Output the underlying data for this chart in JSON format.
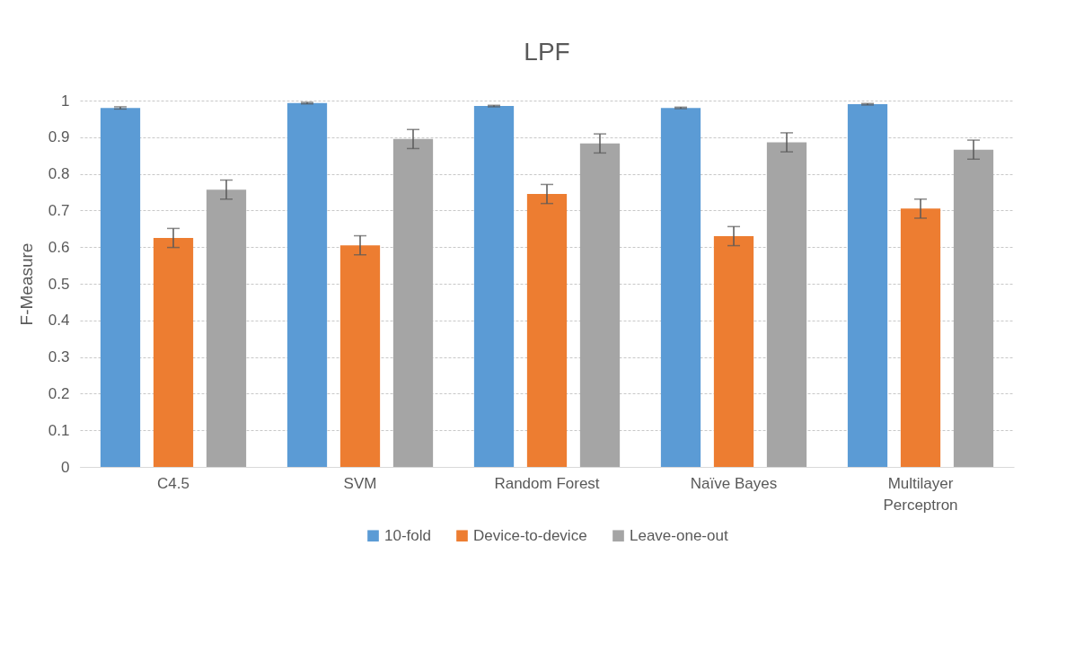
{
  "chart_data": {
    "type": "bar",
    "title": "LPF",
    "ylabel": "F-Measure",
    "categories": [
      "C4.5",
      "SVM",
      "Random Forest",
      "Naïve Bayes",
      "Multilayer Perceptron"
    ],
    "series": [
      {
        "name": "10-fold",
        "color": "#5b9bd5",
        "values": [
          0.98,
          0.993,
          0.985,
          0.98,
          0.99
        ],
        "errors": [
          0.003,
          0.002,
          0.002,
          0.002,
          0.002
        ]
      },
      {
        "name": "Device-to-device",
        "color": "#ed7d31",
        "values": [
          0.625,
          0.605,
          0.745,
          0.63,
          0.705
        ],
        "errors": [
          0.026,
          0.026,
          0.026,
          0.026,
          0.026
        ]
      },
      {
        "name": "Leave-one-out",
        "color": "#a5a5a5",
        "values": [
          0.757,
          0.895,
          0.883,
          0.886,
          0.866
        ],
        "errors": [
          0.026,
          0.026,
          0.026,
          0.026,
          0.026
        ]
      }
    ],
    "ylim": [
      0,
      1
    ],
    "yticks": [
      {
        "value": 0,
        "label": "0"
      },
      0.1,
      0.2,
      0.3,
      0.4,
      0.5,
      0.6,
      0.7,
      0.8,
      0.9,
      {
        "value": 1,
        "label": "1"
      }
    ],
    "grid": "y",
    "legend": "bottom"
  }
}
